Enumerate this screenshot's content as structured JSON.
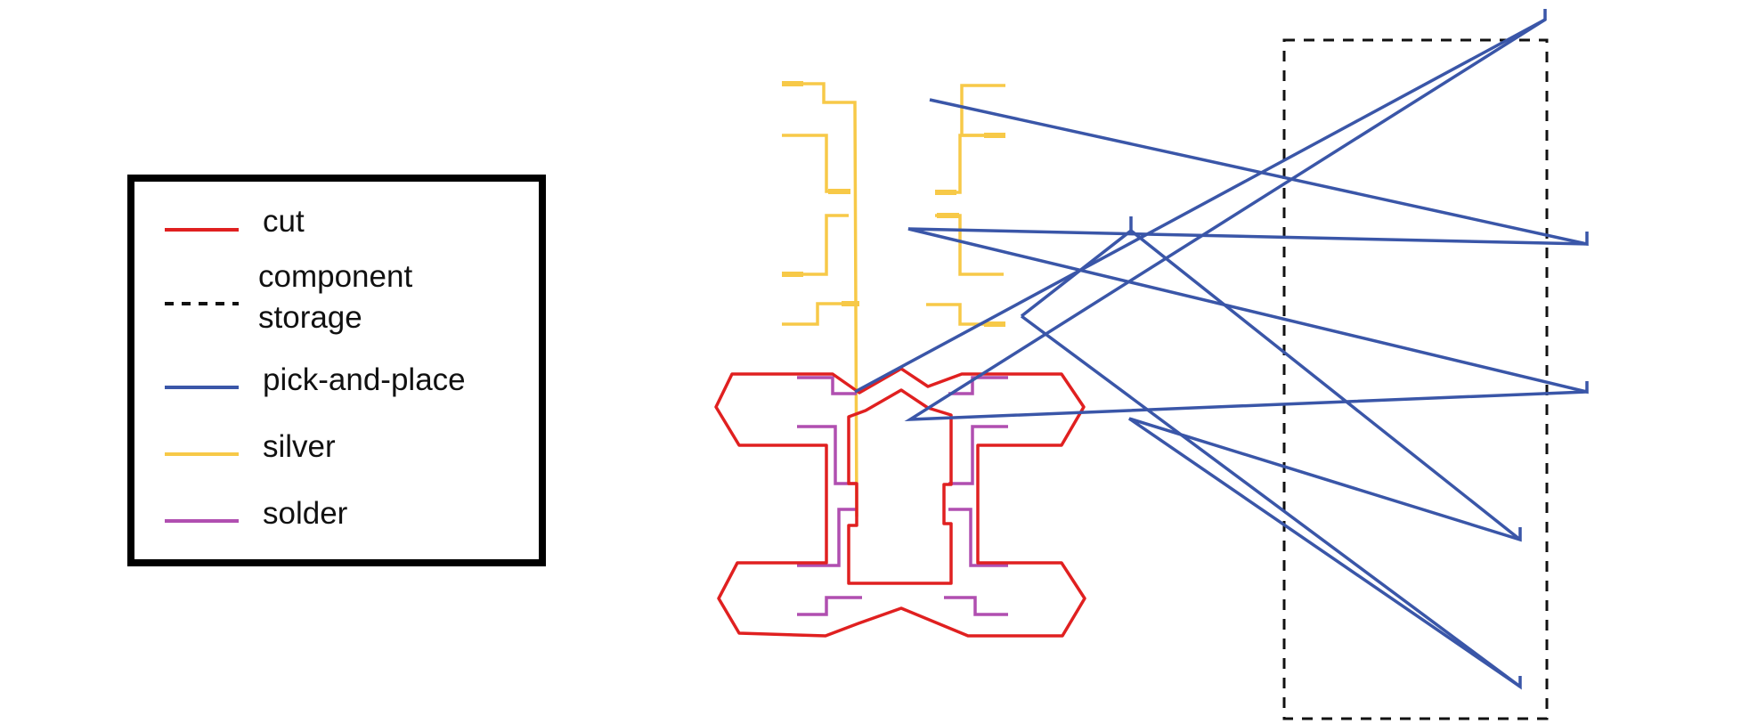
{
  "legend": {
    "items": [
      {
        "key": "cut",
        "label_lines": [
          "cut"
        ],
        "color": "#e02020",
        "style": "solid"
      },
      {
        "key": "component_storage",
        "label_lines": [
          "component",
          "storage"
        ],
        "color": "#111111",
        "style": "dashed"
      },
      {
        "key": "pick_and_place",
        "label_lines": [
          "pick-and-place"
        ],
        "color": "#3a56a8",
        "style": "solid"
      },
      {
        "key": "silver",
        "label_lines": [
          "silver"
        ],
        "color": "#f7c948",
        "style": "solid"
      },
      {
        "key": "solder",
        "label_lines": [
          "solder"
        ],
        "color": "#b04fb0",
        "style": "solid"
      }
    ]
  },
  "colors": {
    "cut": "#e02020",
    "storage": "#111111",
    "pick_and_place": "#3a56a8",
    "silver": "#f7c948",
    "solder": "#b04fb0",
    "legend_border": "#000000"
  }
}
